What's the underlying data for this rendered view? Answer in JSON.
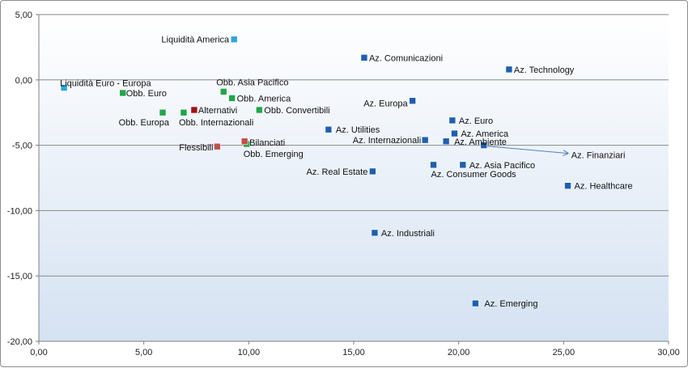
{
  "chart_data": {
    "type": "scatter",
    "title": "",
    "xlabel": "",
    "ylabel": "",
    "xlim": [
      0,
      30
    ],
    "ylim": [
      -20,
      5
    ],
    "x_ticks": [
      "0,00",
      "5,00",
      "10,00",
      "15,00",
      "20,00",
      "25,00",
      "30,00"
    ],
    "y_ticks": [
      "5,00",
      "0,00",
      "-5,00",
      "-10,00",
      "-15,00",
      "-20,00"
    ],
    "grid": "horizontal",
    "legend": "none",
    "colors": {
      "liquidita": "#31a6df",
      "obbligazionari": "#1fa64a",
      "bilanciati_flessibili": "#c0504d",
      "alternativi": "#a50e16",
      "azionari": "#1f5fb0",
      "arrow": "#4f81bd"
    },
    "points": [
      {
        "label": "Liquidità America",
        "x": 9.3,
        "y": 3.1,
        "group": "liquidita"
      },
      {
        "label": "Liquidità Euro - Europa",
        "x": 1.2,
        "y": -0.6,
        "group": "liquidita"
      },
      {
        "label": "Obb. Euro",
        "x": 4.0,
        "y": -1.0,
        "group": "obbligazionari"
      },
      {
        "label": "Obb. Asia Pacifico",
        "x": 8.8,
        "y": -0.9,
        "group": "obbligazionari"
      },
      {
        "label": "Obb. America",
        "x": 9.2,
        "y": -1.4,
        "group": "obbligazionari"
      },
      {
        "label": "Obb. Convertibili",
        "x": 10.5,
        "y": -2.3,
        "group": "obbligazionari"
      },
      {
        "label": "Obb. Europa",
        "x": 5.9,
        "y": -2.5,
        "group": "obbligazionari"
      },
      {
        "label": "Obb. Internazionali",
        "x": 6.9,
        "y": -2.5,
        "group": "obbligazionari"
      },
      {
        "label": "Obb. Emerging",
        "x": 9.9,
        "y": -4.9,
        "group": "obbligazionari"
      },
      {
        "label": "Alternativi",
        "x": 7.4,
        "y": -2.3,
        "group": "alternativi"
      },
      {
        "label": "Bilanciati",
        "x": 9.8,
        "y": -4.7,
        "group": "bilanciati_flessibili"
      },
      {
        "label": "Flessibili",
        "x": 8.5,
        "y": -5.1,
        "group": "bilanciati_flessibili"
      },
      {
        "label": "Az. Comunicazioni",
        "x": 15.5,
        "y": 1.7,
        "group": "azionari"
      },
      {
        "label": "Az. Technology",
        "x": 22.4,
        "y": 0.8,
        "group": "azionari"
      },
      {
        "label": "Az. Europa",
        "x": 17.8,
        "y": -1.6,
        "group": "azionari"
      },
      {
        "label": "Az. Euro",
        "x": 19.7,
        "y": -3.1,
        "group": "azionari"
      },
      {
        "label": "Az. Utilities",
        "x": 13.8,
        "y": -3.8,
        "group": "azionari"
      },
      {
        "label": "Az. America",
        "x": 19.8,
        "y": -4.1,
        "group": "azionari"
      },
      {
        "label": "Az. Internazionali",
        "x": 18.4,
        "y": -4.6,
        "group": "azionari"
      },
      {
        "label": "Az. Ambiente",
        "x": 19.4,
        "y": -4.7,
        "group": "azionari"
      },
      {
        "label": "Az. Finanziari",
        "x": 21.2,
        "y": -5.0,
        "group": "azionari"
      },
      {
        "label": "Az. Asia Pacifico",
        "x": 20.2,
        "y": -6.5,
        "group": "azionari"
      },
      {
        "label": "Az. Consumer Goods",
        "x": 18.8,
        "y": -6.5,
        "group": "azionari"
      },
      {
        "label": "Az. Real Estate",
        "x": 15.9,
        "y": -7.0,
        "group": "azionari"
      },
      {
        "label": "Az. Healthcare",
        "x": 25.2,
        "y": -8.1,
        "group": "azionari"
      },
      {
        "label": "Az. Industriali",
        "x": 16.0,
        "y": -11.7,
        "group": "azionari"
      },
      {
        "label": "Az. Emerging",
        "x": 20.8,
        "y": -17.1,
        "group": "azionari"
      }
    ]
  }
}
